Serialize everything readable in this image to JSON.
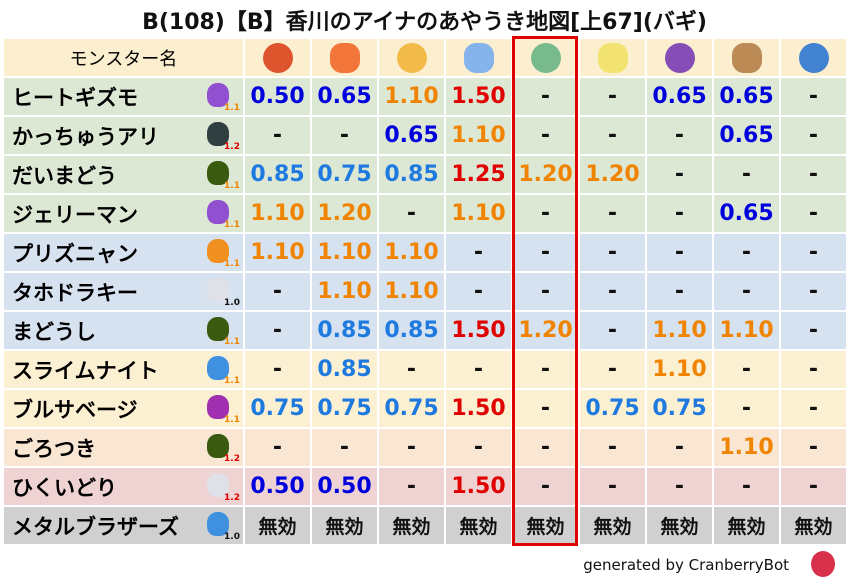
{
  "title": "B(108)【B】香川のアイナのあやうき地図[上67](バギ)",
  "header": {
    "name_label": "モンスター名",
    "elements": [
      "fire-ball-icon",
      "flame-icon",
      "explosion-icon",
      "ice-icon",
      "wind-icon",
      "lightning-icon",
      "darkness-icon",
      "earth-icon",
      "water-icon"
    ],
    "highlight_column": 5
  },
  "colors": {
    "dark_blue": "#0000dd",
    "blue": "#1f7ae0",
    "orange": "#f08400",
    "red": "#e00000",
    "highlight": "#e00000"
  },
  "rows": [
    {
      "name": "ヒートギズモ",
      "badge": "1.1",
      "icon": "gizmo-icon",
      "bg": "#dce8d4",
      "values": [
        "0.50",
        "0.65",
        "1.10",
        "1.50",
        "-",
        "-",
        "0.65",
        "0.65",
        "-"
      ]
    },
    {
      "name": "かっちゅうアリ",
      "badge": "1.2",
      "icon": "ant-icon",
      "bg": "#dce8d4",
      "values": [
        "-",
        "-",
        "0.65",
        "1.10",
        "-",
        "-",
        "-",
        "0.65",
        "-"
      ]
    },
    {
      "name": "だいまどう",
      "badge": "1.1",
      "icon": "hooded-mage-icon",
      "bg": "#dce8d4",
      "values": [
        "0.85",
        "0.75",
        "0.85",
        "1.25",
        "1.20",
        "1.20",
        "-",
        "-",
        "-"
      ]
    },
    {
      "name": "ジェリーマン",
      "badge": "1.1",
      "icon": "gizmo-icon",
      "bg": "#dce8d4",
      "values": [
        "1.10",
        "1.20",
        "-",
        "1.10",
        "-",
        "-",
        "-",
        "0.65",
        "-"
      ]
    },
    {
      "name": "プリズニャン",
      "badge": "1.1",
      "icon": "paw-icon",
      "bg": "#d6e2ef",
      "values": [
        "1.10",
        "1.10",
        "1.10",
        "-",
        "-",
        "-",
        "-",
        "-",
        "-"
      ]
    },
    {
      "name": "タホドラキー",
      "badge": "1.0",
      "icon": "wing-icon",
      "bg": "#d6e2ef",
      "values": [
        "-",
        "1.10",
        "1.10",
        "-",
        "-",
        "-",
        "-",
        "-",
        "-"
      ]
    },
    {
      "name": "まどうし",
      "badge": "1.1",
      "icon": "hooded-mage-icon",
      "bg": "#d6e2ef",
      "values": [
        "-",
        "0.85",
        "0.85",
        "1.50",
        "1.20",
        "-",
        "1.10",
        "1.10",
        "-"
      ]
    },
    {
      "name": "スライムナイト",
      "badge": "1.1",
      "icon": "slime-icon",
      "bg": "#fcf0d2",
      "values": [
        "-",
        "0.85",
        "-",
        "-",
        "-",
        "-",
        "1.10",
        "-",
        "-"
      ]
    },
    {
      "name": "ブルサベージ",
      "badge": "1.1",
      "icon": "demon-icon",
      "bg": "#fcf0d2",
      "values": [
        "0.75",
        "0.75",
        "0.75",
        "1.50",
        "-",
        "0.75",
        "0.75",
        "-",
        "-"
      ]
    },
    {
      "name": "ごろつき",
      "badge": "1.2",
      "icon": "hooded-mage-icon",
      "bg": "#f9e6d3",
      "values": [
        "-",
        "-",
        "-",
        "-",
        "-",
        "-",
        "-",
        "1.10",
        "-"
      ]
    },
    {
      "name": "ひくいどり",
      "badge": "1.2",
      "icon": "wing-icon",
      "bg": "#efd2d2",
      "values": [
        "0.50",
        "0.50",
        "-",
        "1.50",
        "-",
        "-",
        "-",
        "-",
        "-"
      ]
    },
    {
      "name": "メタルブラザーズ",
      "badge": "1.0",
      "icon": "slime-icon",
      "bg": "#d0d0d0",
      "values": [
        "無効",
        "無効",
        "無効",
        "無効",
        "無効",
        "無効",
        "無効",
        "無効",
        "無効"
      ]
    }
  ],
  "footer": "generated by CranberryBot"
}
